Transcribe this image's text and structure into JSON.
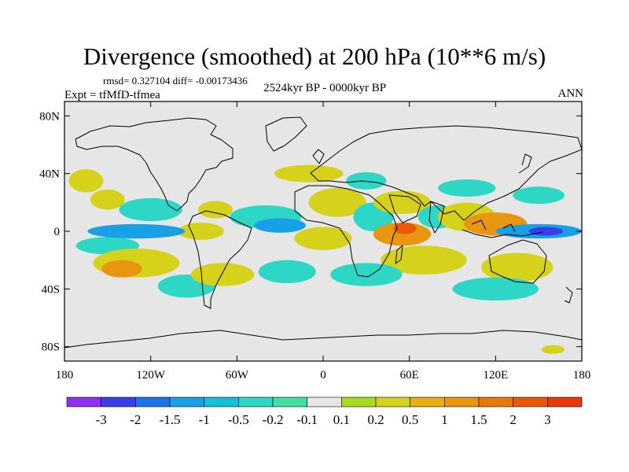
{
  "title": "Divergence (smoothed) at 200 hPa (10**6 m/s)",
  "stats": "rmsd= 0.327104 diff= -0.00173436",
  "experiment": "Expt = tfMfD-tfmea",
  "period": "2524kyr BP - 0000kyr BP",
  "season": "ANN",
  "map": {
    "projection": "cylindrical-equidistant",
    "lon_range": [
      -180,
      180
    ],
    "lat_range": [
      -90,
      90
    ],
    "lat_ticks": [
      {
        "value": 80,
        "label": "80N"
      },
      {
        "value": 40,
        "label": "40N"
      },
      {
        "value": 0,
        "label": "0"
      },
      {
        "value": -40,
        "label": "40S"
      },
      {
        "value": -80,
        "label": "80S"
      }
    ],
    "lon_ticks": [
      {
        "value": -180,
        "label": "180"
      },
      {
        "value": -120,
        "label": "120W"
      },
      {
        "value": -60,
        "label": "60W"
      },
      {
        "value": 0,
        "label": "0"
      },
      {
        "value": 60,
        "label": "60E"
      },
      {
        "value": 120,
        "label": "120E"
      },
      {
        "value": 180,
        "label": "180"
      }
    ],
    "background_color": "#e6e6e6",
    "field_regions": [
      {
        "lon": -165,
        "lat": 35,
        "dlon": 12,
        "dlat": 8,
        "level": 1
      },
      {
        "lon": -150,
        "lat": 22,
        "dlon": 12,
        "dlat": 7,
        "level": 1
      },
      {
        "lon": -170,
        "lat": 12,
        "dlon": 14,
        "dlat": 6,
        "level": 0
      },
      {
        "lon": -120,
        "lat": 15,
        "dlon": 22,
        "dlat": 8,
        "level": -1
      },
      {
        "lon": -130,
        "lat": 0,
        "dlon": 34,
        "dlat": 5,
        "level": -2
      },
      {
        "lon": -150,
        "lat": -10,
        "dlon": 22,
        "dlat": 6,
        "level": -1
      },
      {
        "lon": -130,
        "lat": -22,
        "dlon": 30,
        "dlat": 10,
        "level": 1
      },
      {
        "lon": -140,
        "lat": -26,
        "dlon": 14,
        "dlat": 6,
        "level": 2
      },
      {
        "lon": -120,
        "lat": -34,
        "dlon": 22,
        "dlat": 8,
        "level": 0
      },
      {
        "lon": -95,
        "lat": -38,
        "dlon": 20,
        "dlat": 8,
        "level": -1
      },
      {
        "lon": -100,
        "lat": 28,
        "dlon": 18,
        "dlat": 10,
        "level": 0
      },
      {
        "lon": -75,
        "lat": 15,
        "dlon": 12,
        "dlat": 6,
        "level": 1
      },
      {
        "lon": -85,
        "lat": 0,
        "dlon": 16,
        "dlat": 6,
        "level": 1
      },
      {
        "lon": -55,
        "lat": -5,
        "dlon": 20,
        "dlat": 10,
        "level": 0
      },
      {
        "lon": -40,
        "lat": 10,
        "dlon": 25,
        "dlat": 8,
        "level": -1
      },
      {
        "lon": -30,
        "lat": 4,
        "dlon": 18,
        "dlat": 5,
        "level": -2
      },
      {
        "lon": -70,
        "lat": -30,
        "dlon": 22,
        "dlat": 8,
        "level": 1
      },
      {
        "lon": -50,
        "lat": -38,
        "dlon": 18,
        "dlat": 6,
        "level": 0
      },
      {
        "lon": -25,
        "lat": -28,
        "dlon": 20,
        "dlat": 8,
        "level": -1
      },
      {
        "lon": 0,
        "lat": -5,
        "dlon": 20,
        "dlat": 8,
        "level": 1
      },
      {
        "lon": 10,
        "lat": 20,
        "dlon": 20,
        "dlat": 10,
        "level": 1
      },
      {
        "lon": -10,
        "lat": 40,
        "dlon": 24,
        "dlat": 6,
        "level": 1
      },
      {
        "lon": 30,
        "lat": 35,
        "dlon": 14,
        "dlat": 6,
        "level": -1
      },
      {
        "lon": 35,
        "lat": 10,
        "dlon": 14,
        "dlat": 10,
        "level": -1
      },
      {
        "lon": 55,
        "lat": -2,
        "dlon": 20,
        "dlat": 8,
        "level": 2
      },
      {
        "lon": 57,
        "lat": 2,
        "dlon": 8,
        "dlat": 4,
        "level": 3
      },
      {
        "lon": 55,
        "lat": 20,
        "dlon": 20,
        "dlat": 8,
        "level": 1
      },
      {
        "lon": 80,
        "lat": 10,
        "dlon": 14,
        "dlat": 8,
        "level": -1
      },
      {
        "lon": 70,
        "lat": -20,
        "dlon": 30,
        "dlat": 10,
        "level": 1
      },
      {
        "lon": 30,
        "lat": -30,
        "dlon": 25,
        "dlat": 8,
        "level": -1
      },
      {
        "lon": 100,
        "lat": 10,
        "dlon": 20,
        "dlat": 10,
        "level": 1
      },
      {
        "lon": 120,
        "lat": 5,
        "dlon": 22,
        "dlat": 8,
        "level": 2
      },
      {
        "lon": 150,
        "lat": 0,
        "dlon": 30,
        "dlat": 5,
        "level": -2
      },
      {
        "lon": 155,
        "lat": 0,
        "dlon": 12,
        "dlat": 3,
        "level": -3
      },
      {
        "lon": 170,
        "lat": 15,
        "dlon": 14,
        "dlat": 8,
        "level": 0
      },
      {
        "lon": 150,
        "lat": 25,
        "dlon": 18,
        "dlat": 6,
        "level": -1
      },
      {
        "lon": 135,
        "lat": -25,
        "dlon": 25,
        "dlat": 10,
        "level": 1
      },
      {
        "lon": 160,
        "lat": -30,
        "dlon": 20,
        "dlat": 6,
        "level": 0
      },
      {
        "lon": 120,
        "lat": -40,
        "dlon": 30,
        "dlat": 8,
        "level": -1
      },
      {
        "lon": 100,
        "lat": 30,
        "dlon": 20,
        "dlat": 6,
        "level": -1
      },
      {
        "lon": 60,
        "lat": -40,
        "dlon": 20,
        "dlat": 5,
        "level": 0
      },
      {
        "lon": 160,
        "lat": -82,
        "dlon": 8,
        "dlat": 3,
        "level": 1
      }
    ]
  },
  "colorbar": {
    "colors": [
      "#8f2ff0",
      "#3b3de8",
      "#1f73e8",
      "#17a0e6",
      "#14bfd8",
      "#2ed6c6",
      "#3fe0a0",
      "#e6e6e6",
      "#a6dc1e",
      "#d6d21c",
      "#e8b00f",
      "#e8960f",
      "#e8780c",
      "#e85a0a",
      "#e83a0a"
    ],
    "labels": [
      "-3",
      "-2",
      "-1.5",
      "-1",
      "-0.5",
      "-0.2",
      "-0.1",
      "0.1",
      "0.2",
      "0.5",
      "1",
      "1.5",
      "2",
      "3"
    ]
  }
}
